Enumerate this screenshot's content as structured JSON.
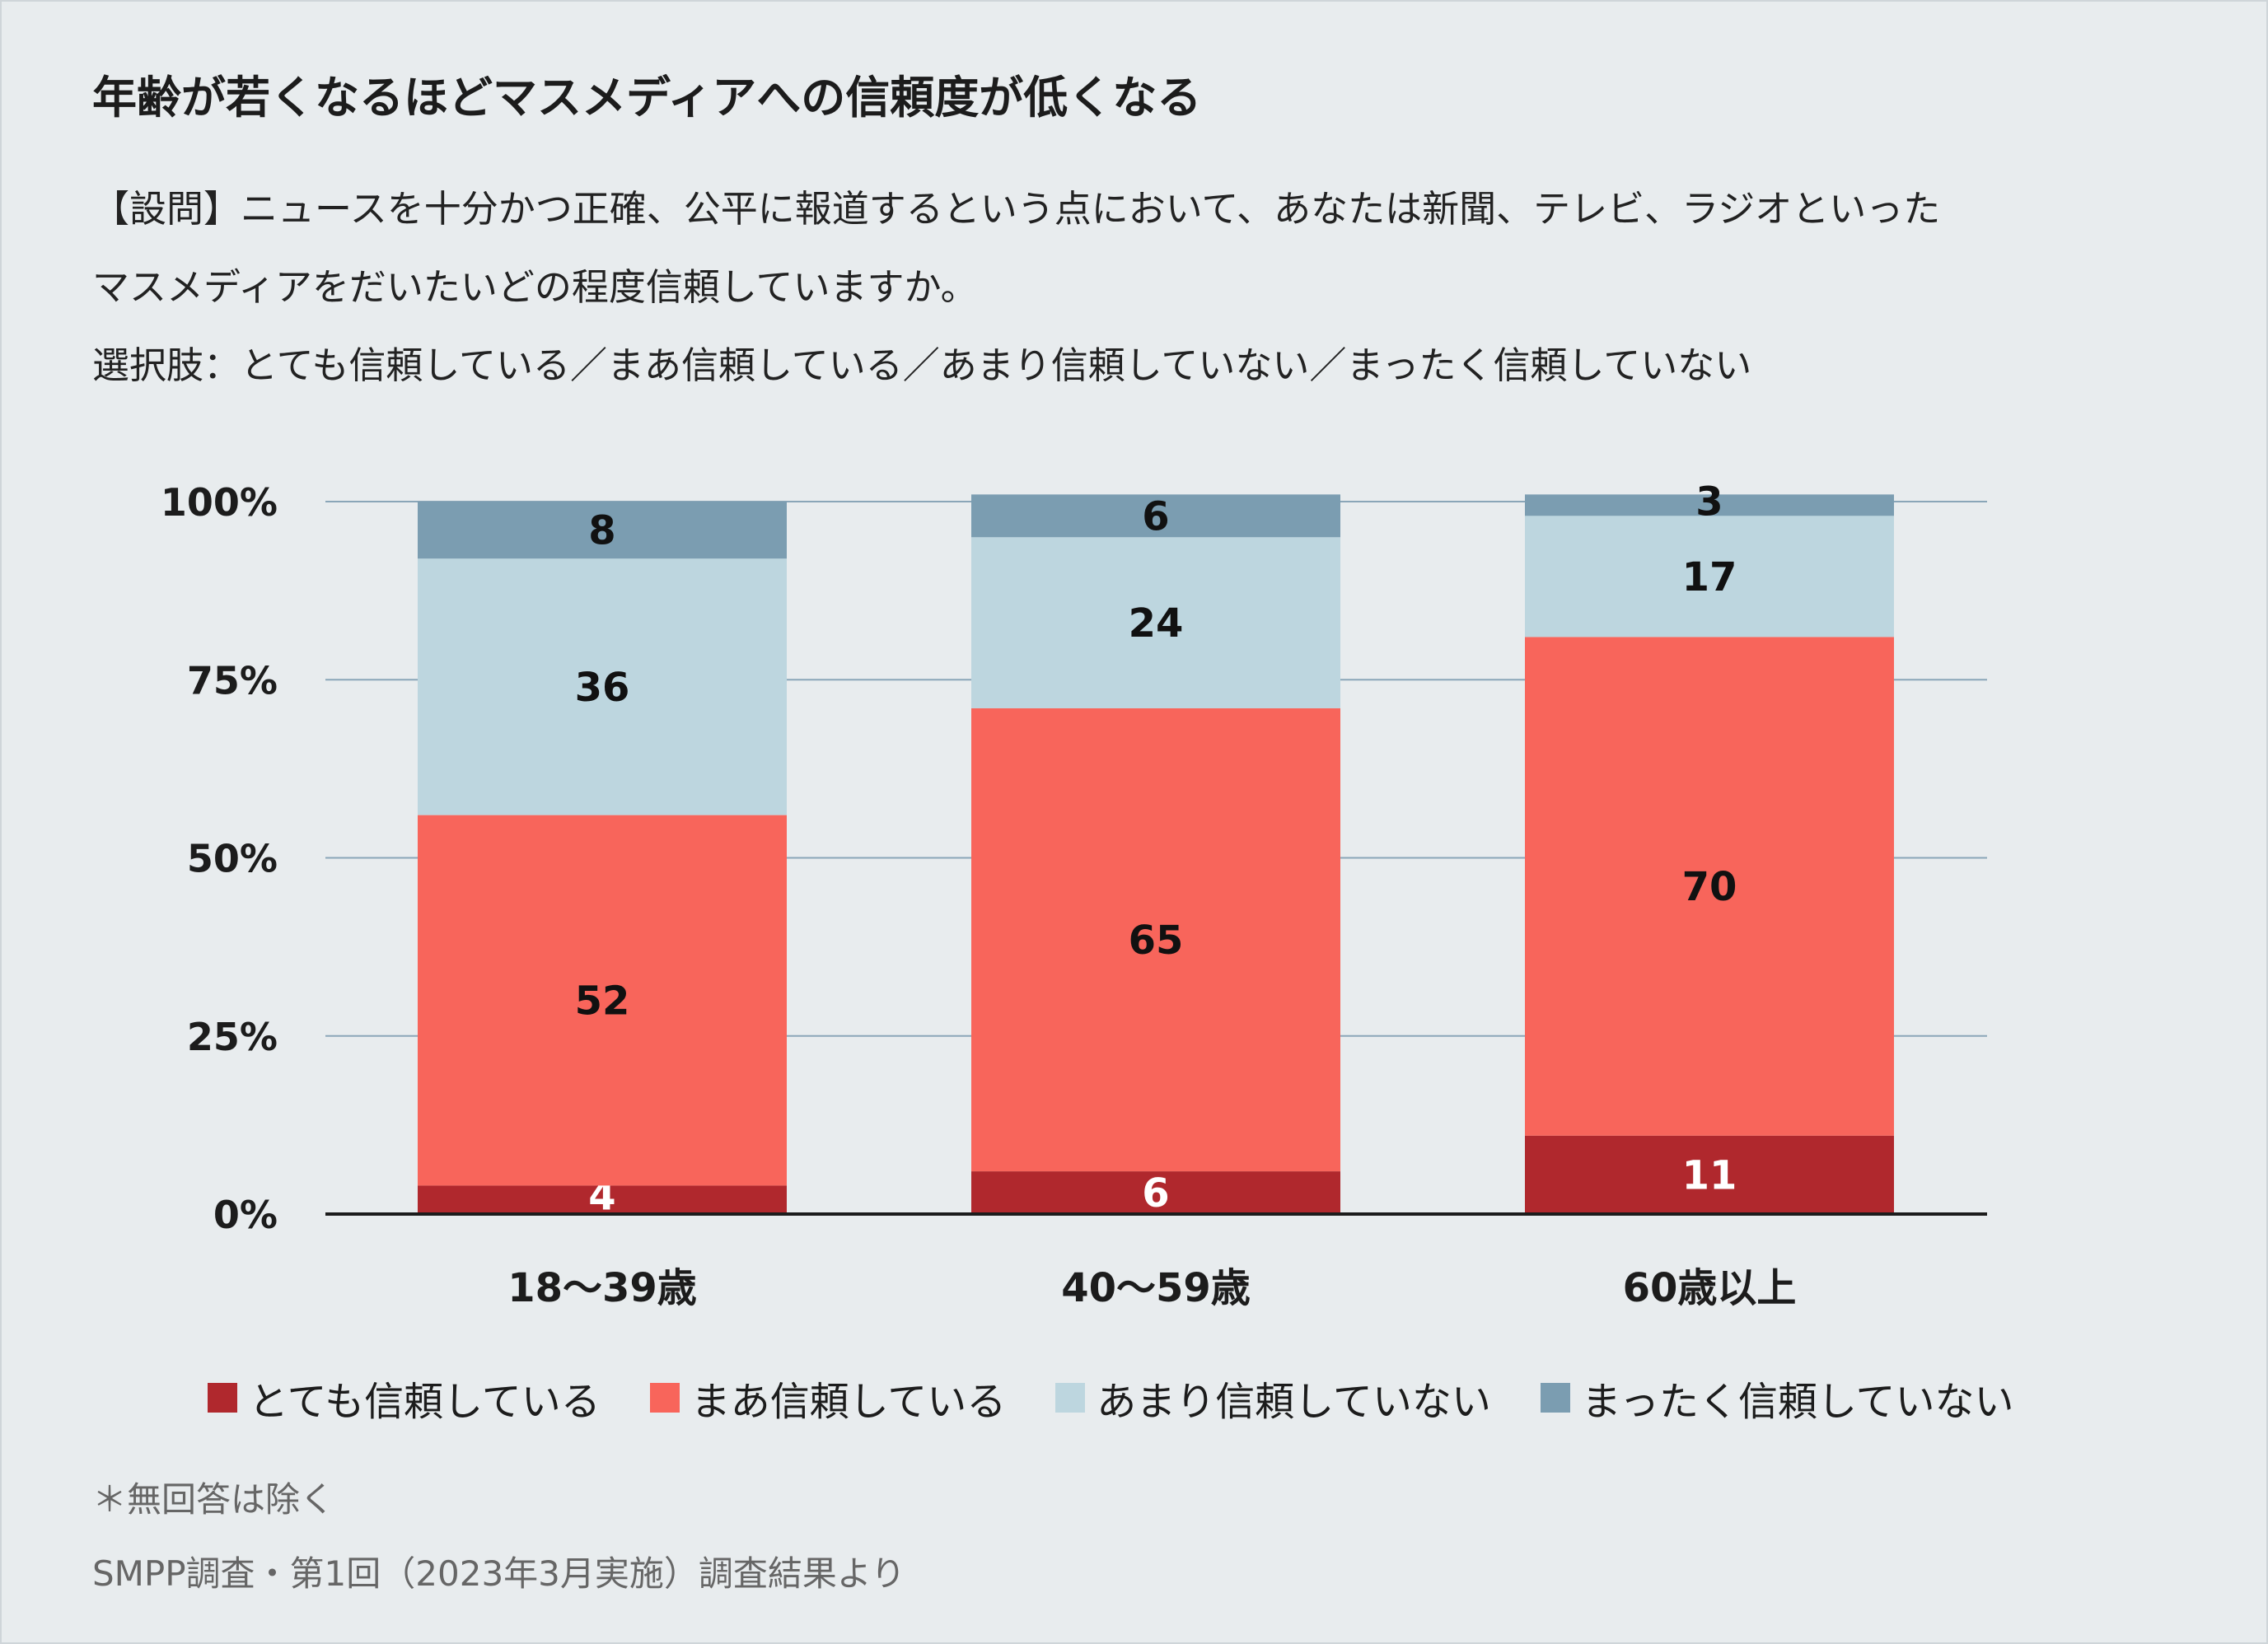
{
  "title": "年齢が若くなるほどマスメディアへの信頼度が低くなる",
  "question": {
    "line1": "【設問】ニュースを十分かつ正確、公平に報道するという点において、あなたは新聞、テレビ、ラジオといった",
    "line2": "マスメディアをだいたいどの程度信頼していますか。",
    "line3": "選択肢：とても信頼している／まあ信頼している／あまり信頼していない／まったく信頼していない"
  },
  "notes": {
    "exclusion": "＊無回答は除く",
    "source": "SMPP調査・第1回（2023年3月実施）調査結果より"
  },
  "chart_data": {
    "type": "bar",
    "stacked": true,
    "categories": [
      "18〜39歳",
      "40〜59歳",
      "60歳以上"
    ],
    "series": [
      {
        "name": "とても信頼している",
        "values": [
          4,
          6,
          11
        ],
        "color": "#b0282d",
        "label_color": "#ffffff"
      },
      {
        "name": "まあ信頼している",
        "values": [
          52,
          65,
          70
        ],
        "color": "#f8655b",
        "label_color": "#111111"
      },
      {
        "name": "あまり信頼していない",
        "values": [
          36,
          24,
          17
        ],
        "color": "#bdd6df",
        "label_color": "#111111"
      },
      {
        "name": "まったく信頼していない",
        "values": [
          8,
          6,
          3
        ],
        "color": "#7b9db1",
        "label_color": "#111111"
      }
    ],
    "yticks": [
      "0%",
      "25%",
      "50%",
      "75%",
      "100%"
    ],
    "ylim": [
      0,
      100
    ],
    "grid": true,
    "legend_position": "bottom"
  }
}
